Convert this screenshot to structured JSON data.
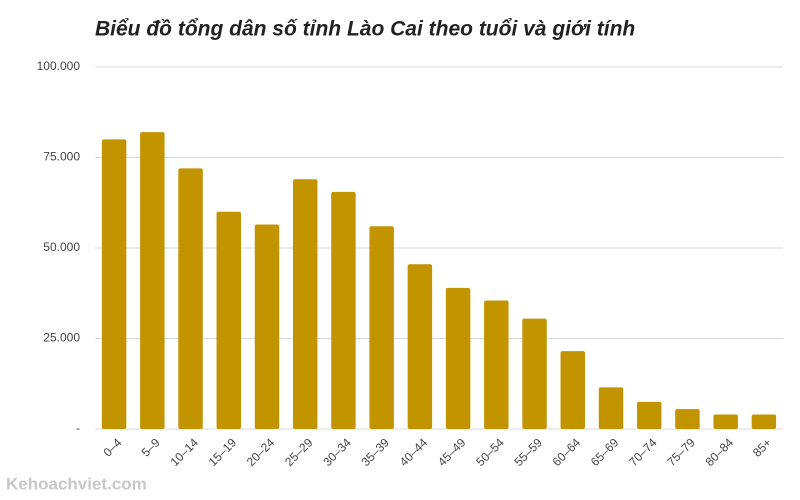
{
  "chart_data": {
    "type": "bar",
    "title": "Biểu đồ tổng dân số tỉnh Lào Cai theo tuổi và giới tính",
    "watermark": "Kehoachviet.com",
    "categories": [
      "0–4",
      "5–9",
      "10–14",
      "15–19",
      "20–24",
      "25–29",
      "30–34",
      "35–39",
      "40–44",
      "45–49",
      "50–54",
      "55–59",
      "60–64",
      "65–69",
      "70–74",
      "75–79",
      "80–84",
      "85+"
    ],
    "values": [
      80000,
      82000,
      72000,
      60000,
      56500,
      69000,
      65500,
      56000,
      45500,
      39000,
      35500,
      30500,
      21500,
      11500,
      7500,
      5500,
      4000,
      4000
    ],
    "color": "#c29400",
    "ylim": [
      0,
      100000
    ],
    "yticks": [
      {
        "value": 0,
        "label": "-"
      },
      {
        "value": 25000,
        "label": "25.000"
      },
      {
        "value": 50000,
        "label": "50.000"
      },
      {
        "value": 75000,
        "label": "75.000"
      },
      {
        "value": 100000,
        "label": "100.000"
      }
    ],
    "grid": true
  }
}
